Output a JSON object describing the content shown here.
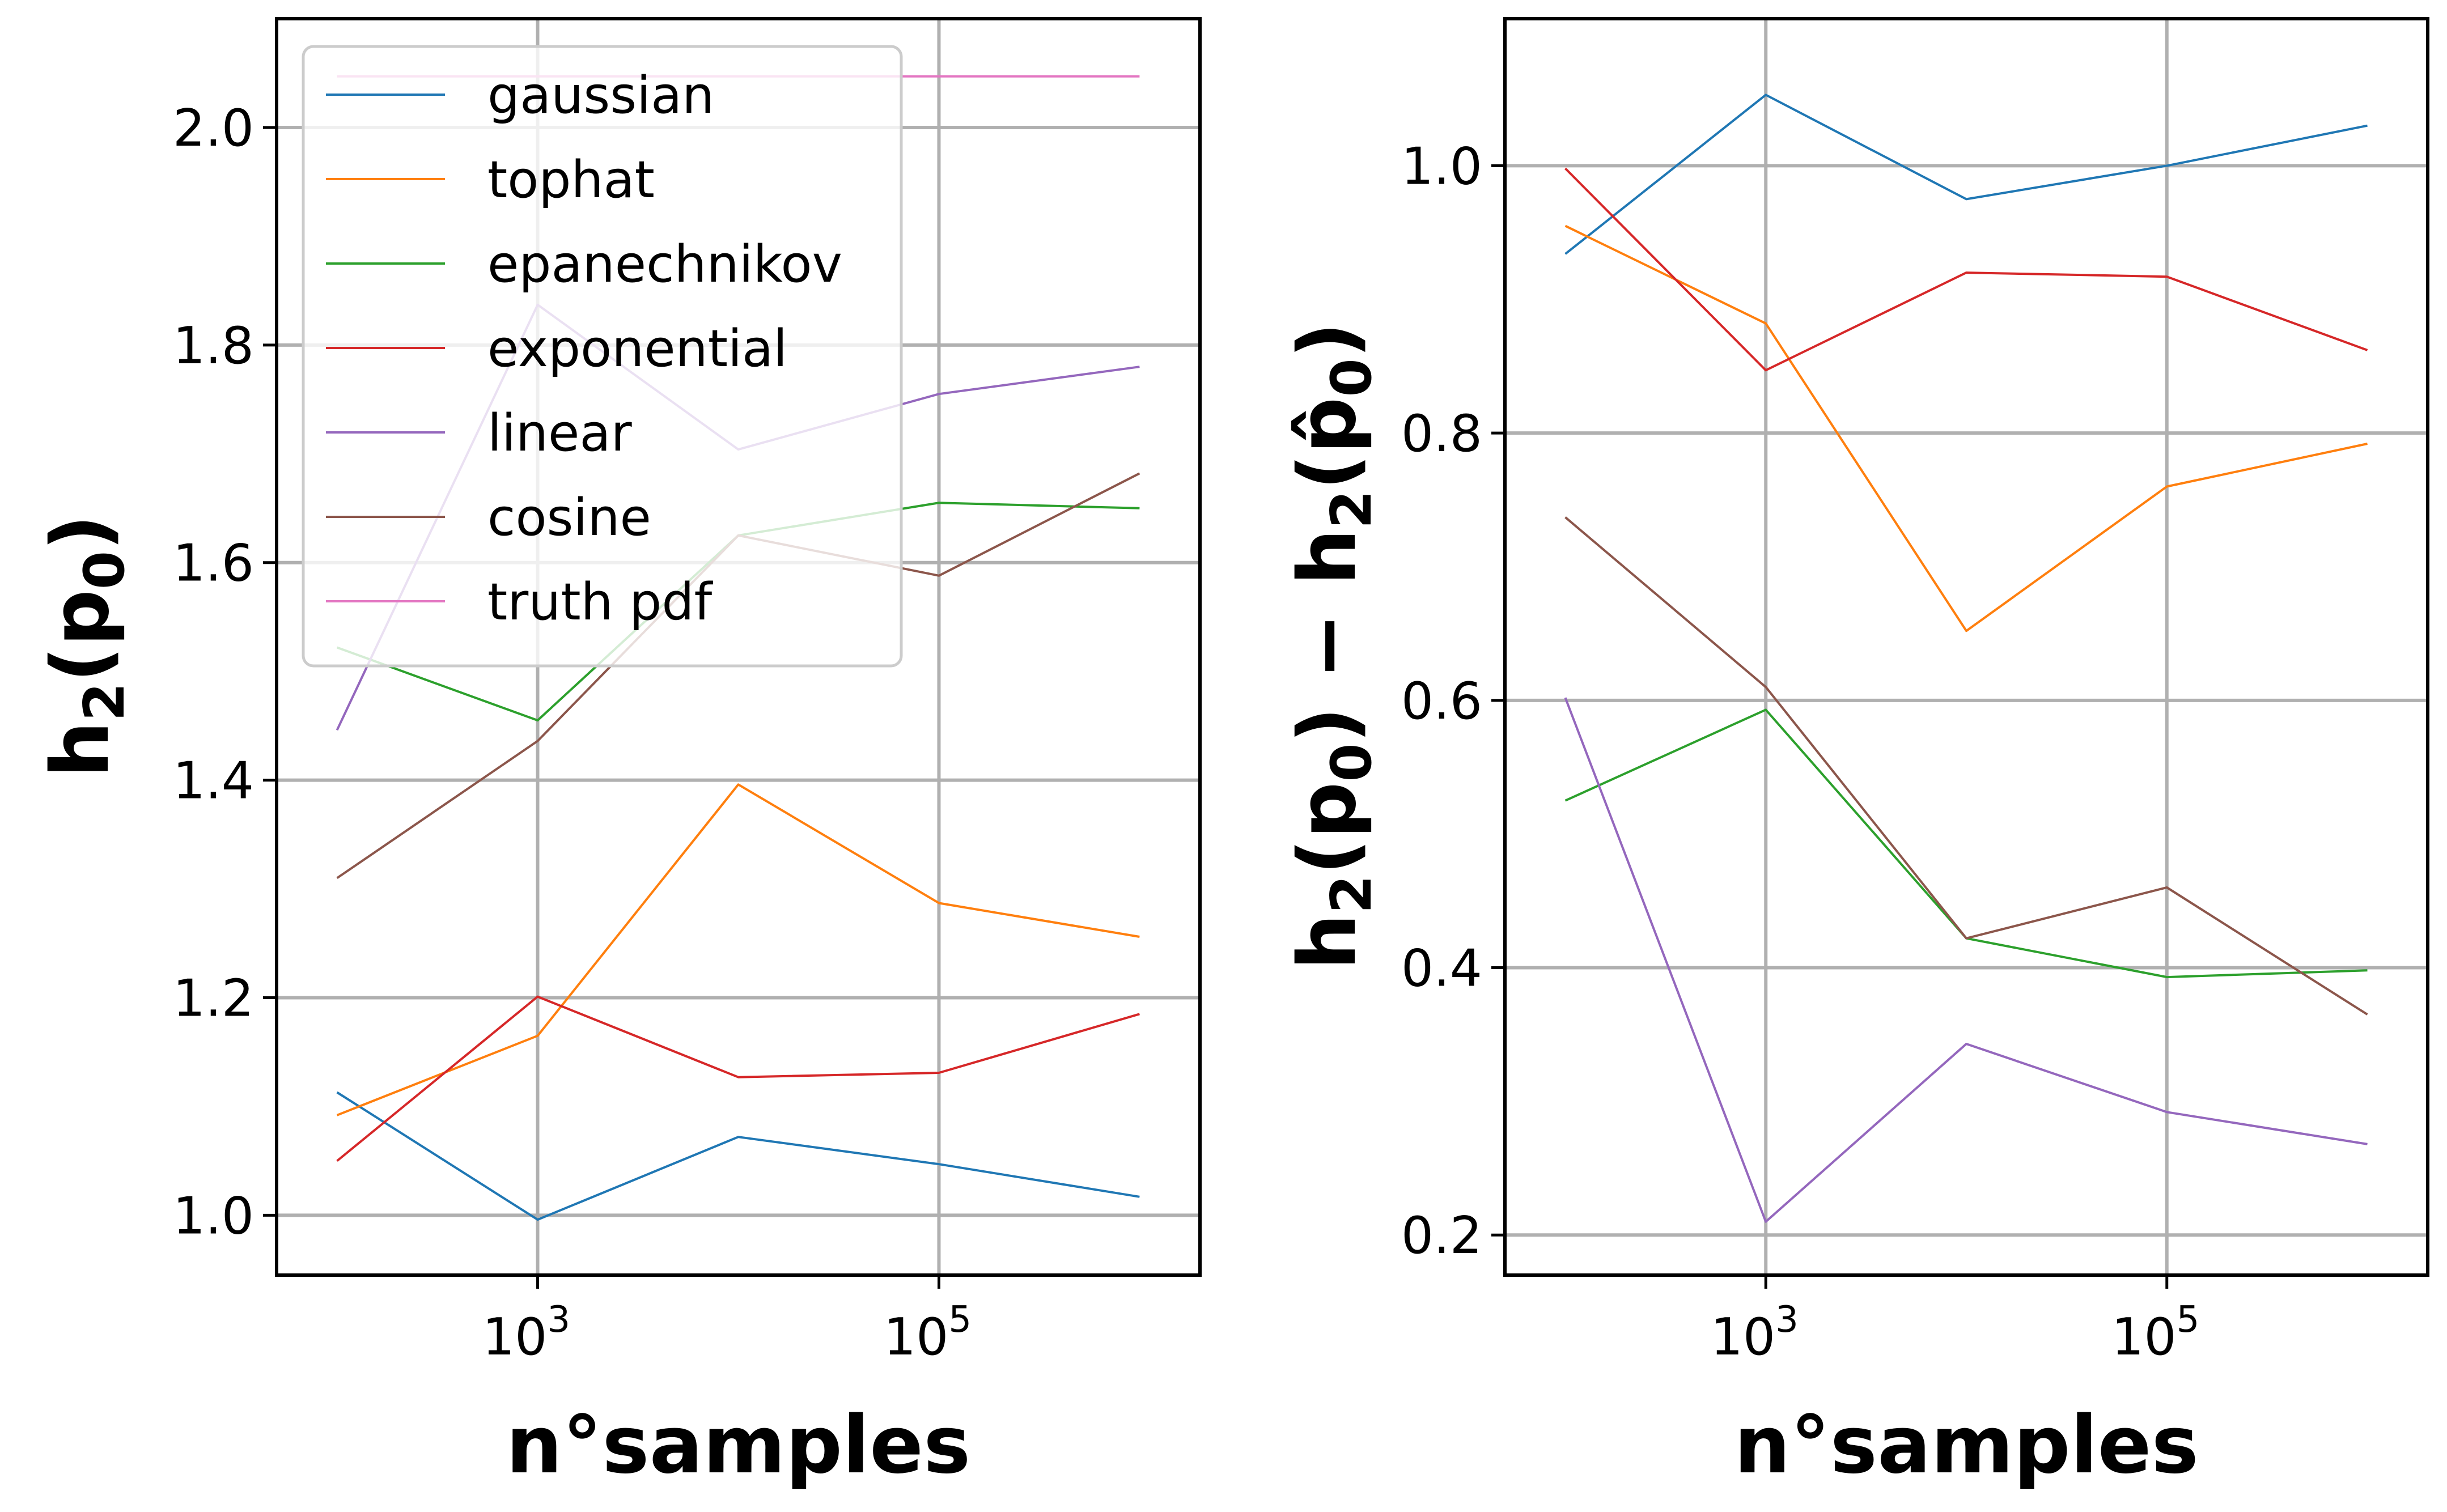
{
  "chart_data": [
    {
      "type": "line",
      "xscale": "log",
      "x": [
        100,
        1000,
        10000,
        100000,
        1000000
      ],
      "xlim": [
        50,
        2000000
      ],
      "ylim": [
        0.945,
        2.1
      ],
      "x_ticks": [
        {
          "value": 1000,
          "base": "10",
          "exp": "3"
        },
        {
          "value": 100000,
          "base": "10",
          "exp": "5"
        }
      ],
      "y_ticks": [
        {
          "value": 1.0,
          "label": "1.0"
        },
        {
          "value": 1.2,
          "label": "1.2"
        },
        {
          "value": 1.4,
          "label": "1.4"
        },
        {
          "value": 1.6,
          "label": "1.6"
        },
        {
          "value": 1.8,
          "label": "1.8"
        },
        {
          "value": 2.0,
          "label": "2.0"
        }
      ],
      "xlabel": "n°samples",
      "ylabel": {
        "main": "h",
        "sub": "2",
        "open": "(p",
        "sub2": "0",
        "close": ")"
      },
      "grid": true,
      "legend": "upper-left",
      "series": [
        {
          "name": "gaussian",
          "color": "#1f77b4",
          "values": [
            1.113,
            0.996,
            1.072,
            1.047,
            1.017
          ]
        },
        {
          "name": "tophat",
          "color": "#ff7f0e",
          "values": [
            1.092,
            1.165,
            1.396,
            1.287,
            1.256
          ]
        },
        {
          "name": "epanechnikov",
          "color": "#2ca02c",
          "values": [
            1.522,
            1.455,
            1.625,
            1.655,
            1.65
          ]
        },
        {
          "name": "exponential",
          "color": "#d62728",
          "values": [
            1.05,
            1.201,
            1.127,
            1.131,
            1.185
          ]
        },
        {
          "name": "linear",
          "color": "#9467bd",
          "values": [
            1.446,
            1.837,
            1.704,
            1.755,
            1.78
          ]
        },
        {
          "name": "cosine",
          "color": "#8c564b",
          "values": [
            1.31,
            1.436,
            1.625,
            1.588,
            1.682
          ]
        },
        {
          "name": "truth pdf",
          "color": "#e377c2",
          "values": [
            2.047,
            2.047,
            2.047,
            2.047,
            2.047
          ]
        }
      ]
    },
    {
      "type": "line",
      "xscale": "log",
      "x": [
        100,
        1000,
        10000,
        100000,
        1000000
      ],
      "xlim": [
        50,
        2000000
      ],
      "ylim": [
        0.17,
        1.11
      ],
      "x_ticks": [
        {
          "value": 1000,
          "base": "10",
          "exp": "3"
        },
        {
          "value": 100000,
          "base": "10",
          "exp": "5"
        }
      ],
      "y_ticks": [
        {
          "value": 0.2,
          "label": "0.2"
        },
        {
          "value": 0.4,
          "label": "0.4"
        },
        {
          "value": 0.6,
          "label": "0.6"
        },
        {
          "value": 0.8,
          "label": "0.8"
        },
        {
          "value": 1.0,
          "label": "1.0"
        }
      ],
      "xlabel": "n°samples",
      "ylabel": {
        "main": "h",
        "sub": "2",
        "open": "(p",
        "sub2": "0",
        "close": ") − h",
        "sub3": "2",
        "open2": "(p̂",
        "sub4": "0",
        "close2": ")"
      },
      "grid": true,
      "series": [
        {
          "name": "gaussian",
          "color": "#1f77b4",
          "values": [
            0.934,
            1.053,
            0.975,
            1.0,
            1.03
          ]
        },
        {
          "name": "tophat",
          "color": "#ff7f0e",
          "values": [
            0.955,
            0.882,
            0.652,
            0.76,
            0.792
          ]
        },
        {
          "name": "epanechnikov",
          "color": "#2ca02c",
          "values": [
            0.525,
            0.593,
            0.422,
            0.393,
            0.398
          ]
        },
        {
          "name": "exponential",
          "color": "#d62728",
          "values": [
            0.998,
            0.847,
            0.92,
            0.917,
            0.862
          ]
        },
        {
          "name": "linear",
          "color": "#9467bd",
          "values": [
            0.602,
            0.21,
            0.343,
            0.292,
            0.268
          ]
        },
        {
          "name": "cosine",
          "color": "#8c564b",
          "values": [
            0.737,
            0.61,
            0.422,
            0.46,
            0.365
          ]
        }
      ]
    }
  ]
}
